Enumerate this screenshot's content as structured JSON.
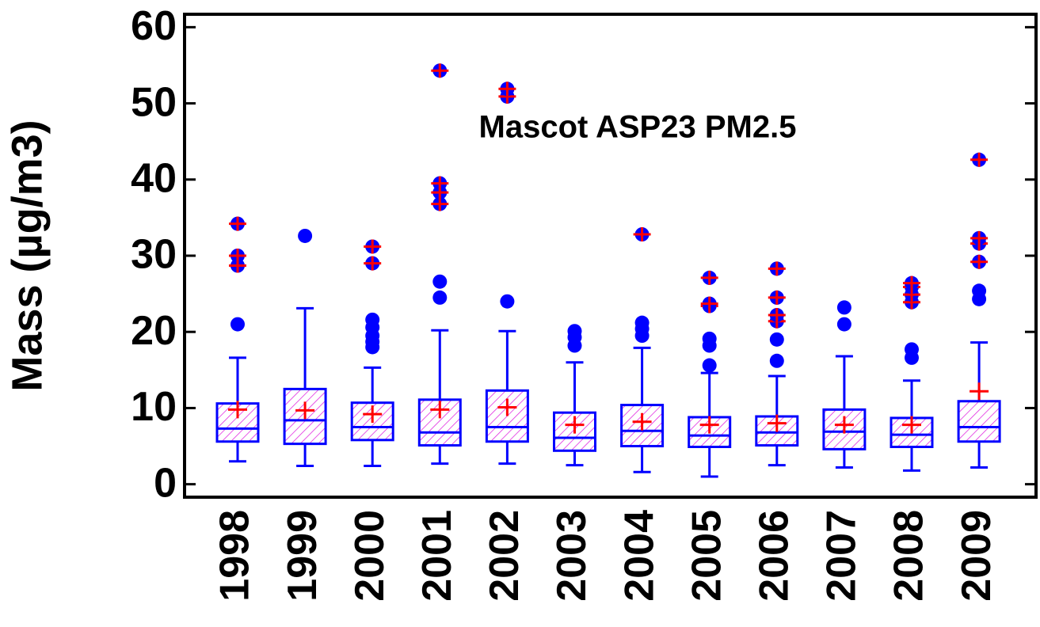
{
  "chart_data": {
    "type": "box",
    "title": "Mascot ASP23 PM2.5",
    "y_label": "Mass (µg/m3)",
    "categories": [
      "1998",
      "1999",
      "2000",
      "2001",
      "2002",
      "2003",
      "2004",
      "2005",
      "2006",
      "2007",
      "2008",
      "2009"
    ],
    "whisker_low": [
      3.0,
      2.4,
      2.4,
      2.7,
      2.7,
      2.5,
      1.6,
      1.0,
      2.5,
      2.2,
      1.8,
      2.2
    ],
    "q1": [
      5.6,
      5.3,
      5.8,
      5.1,
      5.6,
      4.4,
      5.0,
      4.9,
      5.1,
      4.6,
      4.9,
      5.6
    ],
    "median": [
      7.3,
      8.4,
      7.5,
      6.8,
      7.5,
      6.1,
      7.0,
      6.4,
      6.8,
      6.9,
      6.5,
      7.5
    ],
    "q3": [
      10.6,
      12.5,
      10.7,
      11.1,
      12.3,
      9.4,
      10.4,
      8.8,
      8.9,
      9.8,
      8.7,
      10.9
    ],
    "whisker_high": [
      16.6,
      23.1,
      15.3,
      20.2,
      20.1,
      16.0,
      17.9,
      14.6,
      14.2,
      16.8,
      13.6,
      18.6
    ],
    "mean": [
      9.8,
      9.7,
      9.2,
      9.8,
      10.1,
      7.8,
      8.2,
      7.8,
      8.0,
      7.8,
      7.8,
      12.2
    ],
    "outliers": [
      [
        21.0
      ],
      [
        32.6
      ],
      [
        18.0,
        18.7,
        19.5,
        20.6,
        21.6
      ],
      [
        24.5,
        26.6
      ],
      [
        24.0
      ],
      [
        18.2,
        19.3,
        20.1
      ],
      [
        19.5,
        20.4,
        21.2
      ],
      [
        15.6,
        18.2,
        19.1
      ],
      [
        16.2,
        19.0
      ],
      [
        21.0,
        23.2
      ],
      [
        16.6,
        17.7
      ],
      [
        24.3,
        25.4
      ]
    ],
    "far_outliers": [
      [
        28.7,
        30.0,
        34.2
      ],
      [],
      [
        29.0,
        31.2
      ],
      [
        36.8,
        38.3,
        39.5,
        54.3
      ],
      [
        50.9,
        51.9
      ],
      [],
      [
        32.8
      ],
      [
        23.4,
        23.7,
        27.1
      ],
      [
        21.4,
        22.2,
        24.5,
        28.3
      ],
      [],
      [
        23.9,
        24.9,
        25.9,
        26.4
      ],
      [
        29.2,
        31.6,
        32.3,
        42.6
      ]
    ],
    "box_color": "#0000ff",
    "hatch_color": "#e020e0",
    "mean_color": "#ff0000",
    "ylim": [
      -1.7,
      61.7
    ],
    "yticks": [
      0,
      10,
      20,
      30,
      40,
      50,
      60
    ]
  }
}
